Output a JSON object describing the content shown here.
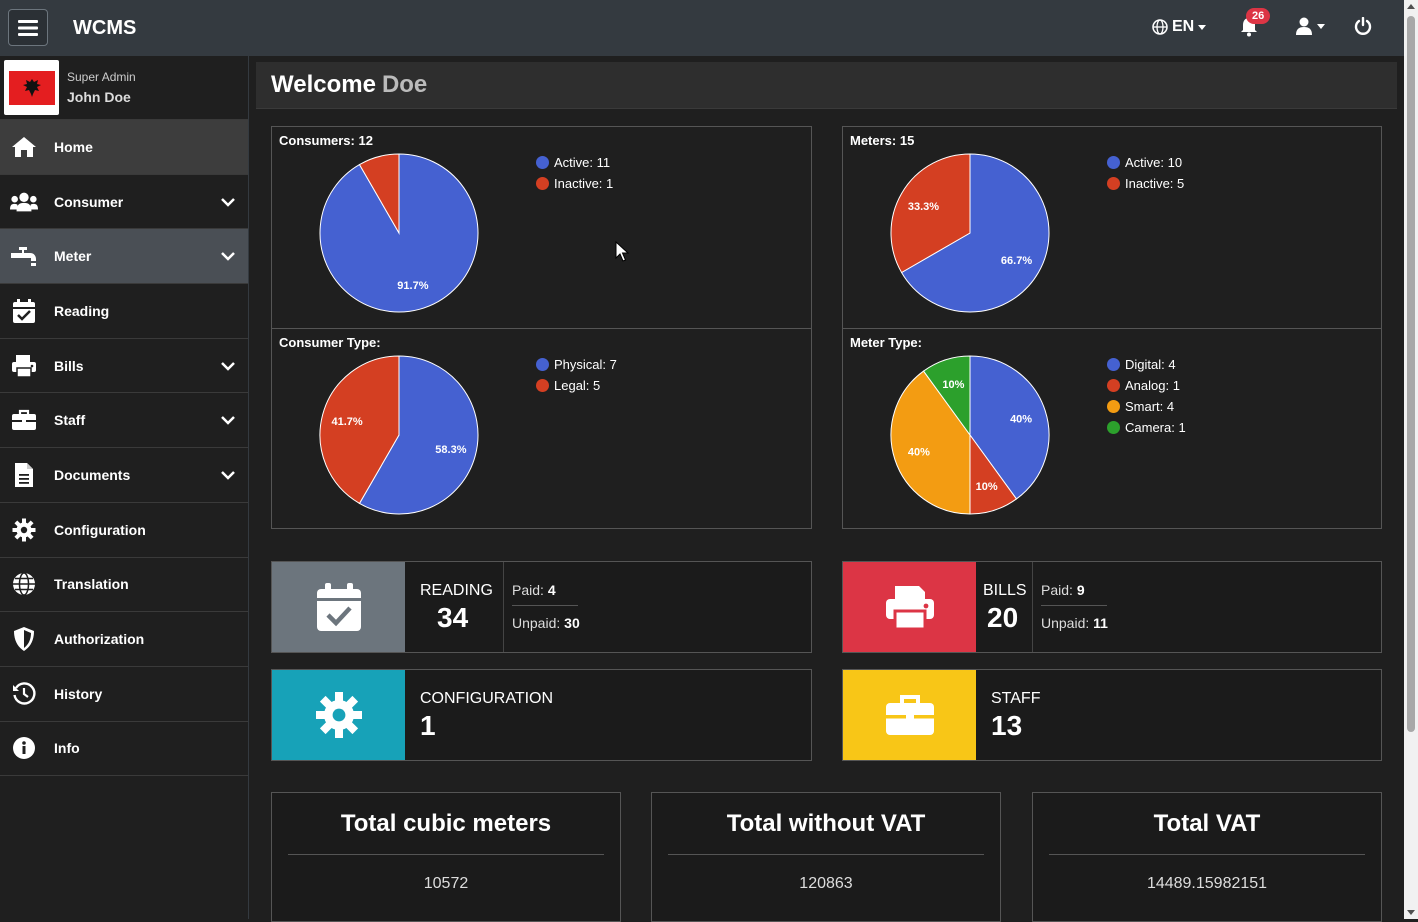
{
  "app": {
    "brand": "WCMS"
  },
  "topbar": {
    "language": "EN",
    "notification_count": "26"
  },
  "sidebar": {
    "profile": {
      "role": "Super Admin",
      "name": "John Doe"
    },
    "items": [
      {
        "label": "Home",
        "icon": "home-icon"
      },
      {
        "label": "Consumer",
        "icon": "users-icon"
      },
      {
        "label": "Meter",
        "icon": "faucet-icon"
      },
      {
        "label": "Reading",
        "icon": "calendar-check-icon"
      },
      {
        "label": "Bills",
        "icon": "printer-icon"
      },
      {
        "label": "Staff",
        "icon": "briefcase-icon"
      },
      {
        "label": "Documents",
        "icon": "document-icon"
      },
      {
        "label": "Configuration",
        "icon": "gear-icon"
      },
      {
        "label": "Translation",
        "icon": "globe-icon"
      },
      {
        "label": "Authorization",
        "icon": "shield-icon"
      },
      {
        "label": "History",
        "icon": "history-icon"
      },
      {
        "label": "Info",
        "icon": "info-icon"
      }
    ]
  },
  "main": {
    "welcome": "Welcome",
    "welcome_name": "Doe"
  },
  "chart_data": [
    {
      "type": "pie",
      "title": "Consumers: 12",
      "categories": [
        "Active: 11",
        "Inactive: 1"
      ],
      "values": [
        11,
        1
      ],
      "slice_labels": [
        "91.7%",
        ""
      ],
      "colors": [
        "#4561d1",
        "#d43f22"
      ],
      "legend": "right"
    },
    {
      "type": "pie",
      "title": "Meters: 15",
      "categories": [
        "Active: 10",
        "Inactive: 5"
      ],
      "values": [
        10,
        5
      ],
      "slice_labels": [
        "66.7%",
        "33.3%"
      ],
      "colors": [
        "#4561d1",
        "#d43f22"
      ],
      "legend": "right"
    },
    {
      "type": "pie",
      "title": "Consumer Type:",
      "categories": [
        "Physical: 7",
        "Legal: 5"
      ],
      "values": [
        7,
        5
      ],
      "slice_labels": [
        "58.3%",
        "41.7%"
      ],
      "colors": [
        "#4561d1",
        "#d43f22"
      ],
      "legend": "right"
    },
    {
      "type": "pie",
      "title": "Meter Type:",
      "categories": [
        "Digital: 4",
        "Analog: 1",
        "Smart: 4",
        "Camera: 1"
      ],
      "values": [
        4,
        1,
        4,
        1
      ],
      "slice_labels": [
        "40%",
        "10%",
        "40%",
        "10%"
      ],
      "colors": [
        "#4561d1",
        "#d43f22",
        "#f39c12",
        "#2ca02c"
      ],
      "legend": "right"
    }
  ],
  "stats": {
    "reading": {
      "label": "READING",
      "value": "34",
      "paid_label": "Paid:",
      "paid": "4",
      "unpaid_label": "Unpaid:",
      "unpaid": "30",
      "color": "#6c757d"
    },
    "bills": {
      "label": "BILLS",
      "value": "20",
      "paid_label": "Paid:",
      "paid": "9",
      "unpaid_label": "Unpaid:",
      "unpaid": "11",
      "color": "#dc3545"
    },
    "configuration": {
      "label": "CONFIGURATION",
      "value": "1",
      "color": "#17a2b8"
    },
    "staff": {
      "label": "STAFF",
      "value": "13",
      "color": "#ffc107"
    }
  },
  "totals": [
    {
      "title": "Total cubic meters",
      "value": "10572"
    },
    {
      "title": "Total without VAT",
      "value": "120863"
    },
    {
      "title": "Total VAT",
      "value": "14489.15982151"
    }
  ]
}
